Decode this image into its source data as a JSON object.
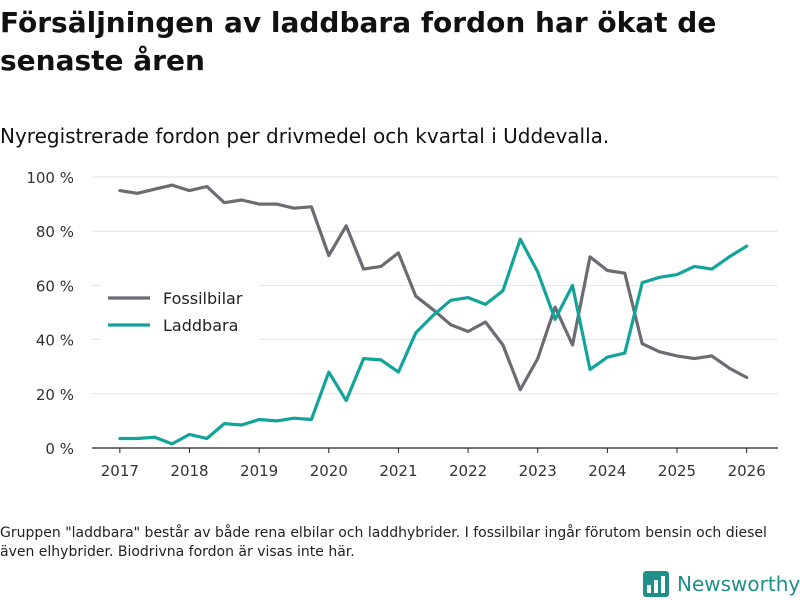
{
  "title": "Försäljningen av laddbara fordon har ökat de senaste åren",
  "subtitle": "Nyregistrerade fordon per drivmedel och kvartal i Uddevalla.",
  "footnote": "Gruppen \"laddbara\" består av både rena elbilar och laddhybrider. I fossilbilar ingår förutom bensin och diesel även elhybrider. Biodrivna fordon är visas inte här.",
  "brand": {
    "name": "Newsworthy",
    "icon": "newsworthy-logo-icon",
    "color": "#1e8f89"
  },
  "chart_data": {
    "type": "line",
    "title": "Nyregistrerade fordon per drivmedel och kvartal i Uddevalla.",
    "xlabel": "",
    "ylabel": "",
    "x_ticks": [
      2017,
      2018,
      2019,
      2020,
      2021,
      2022,
      2023,
      2024,
      2025,
      2026
    ],
    "x_tick_labels": [
      "2017",
      "2018",
      "2019",
      "2020",
      "2021",
      "2022",
      "2023",
      "2024",
      "2025",
      "2026"
    ],
    "xlim": [
      2016.6,
      2026.45
    ],
    "y_ticks": [
      0,
      20,
      40,
      60,
      80,
      100
    ],
    "y_tick_labels": [
      "0 %",
      "20 %",
      "40 %",
      "60 %",
      "80 %",
      "100 %"
    ],
    "ylim": [
      0,
      100
    ],
    "grid": true,
    "legend_position": "left",
    "x": [
      2017.0,
      2017.25,
      2017.5,
      2017.75,
      2018.0,
      2018.25,
      2018.5,
      2018.75,
      2019.0,
      2019.25,
      2019.5,
      2019.75,
      2020.0,
      2020.25,
      2020.5,
      2020.75,
      2021.0,
      2021.25,
      2021.5,
      2021.75,
      2022.0,
      2022.25,
      2022.5,
      2022.75,
      2023.0,
      2023.25,
      2023.5,
      2023.75,
      2024.0,
      2024.25,
      2024.5,
      2024.75,
      2025.0,
      2025.25,
      2025.5,
      2025.75,
      2026.0
    ],
    "series": [
      {
        "name": "Fossilbilar",
        "color": "#6b6b73",
        "values": [
          95,
          94,
          95.5,
          97,
          95,
          96.5,
          90.5,
          91.5,
          90,
          90,
          88.5,
          89,
          71,
          82,
          66,
          67,
          72,
          56,
          51,
          45.5,
          43,
          46.5,
          38,
          21.5,
          33,
          52,
          38,
          70.5,
          65.5,
          64.5,
          38.5,
          35.5,
          34,
          33,
          34,
          29.5,
          26
        ]
      },
      {
        "name": "Laddbara",
        "color": "#12a39b",
        "values": [
          3.5,
          3.5,
          4,
          1.5,
          5,
          3.5,
          9,
          8.5,
          10.5,
          10,
          11,
          10.5,
          28,
          17.5,
          33,
          32.5,
          28,
          42.5,
          49,
          54.5,
          55.5,
          53,
          58,
          77,
          65,
          47.5,
          60,
          29,
          33.5,
          35,
          61,
          63,
          64,
          67,
          66,
          70.5,
          74.5
        ]
      }
    ]
  }
}
